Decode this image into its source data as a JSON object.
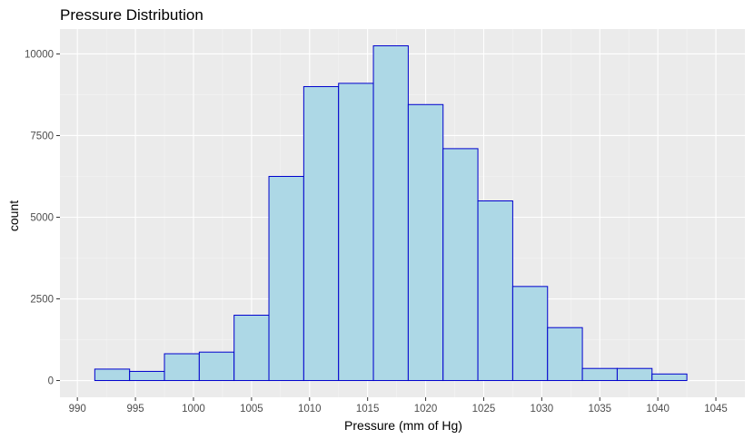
{
  "chart_data": {
    "type": "bar",
    "subtype": "histogram",
    "title": "Pressure Distribution",
    "xlabel": "Pressure (mm of Hg)",
    "ylabel": "count",
    "bin_width": 3,
    "bins": [
      {
        "x0": 991.5,
        "x1": 994.5,
        "count": 350
      },
      {
        "x0": 994.5,
        "x1": 997.5,
        "count": 280
      },
      {
        "x0": 997.5,
        "x1": 1000.5,
        "count": 820
      },
      {
        "x0": 1000.5,
        "x1": 1003.5,
        "count": 870
      },
      {
        "x0": 1003.5,
        "x1": 1006.5,
        "count": 2000
      },
      {
        "x0": 1006.5,
        "x1": 1009.5,
        "count": 6250
      },
      {
        "x0": 1009.5,
        "x1": 1012.5,
        "count": 9000
      },
      {
        "x0": 1012.5,
        "x1": 1015.5,
        "count": 9100
      },
      {
        "x0": 1015.5,
        "x1": 1018.5,
        "count": 10250
      },
      {
        "x0": 1018.5,
        "x1": 1021.5,
        "count": 8450
      },
      {
        "x0": 1021.5,
        "x1": 1024.5,
        "count": 7100
      },
      {
        "x0": 1024.5,
        "x1": 1027.5,
        "count": 5500
      },
      {
        "x0": 1027.5,
        "x1": 1030.5,
        "count": 2880
      },
      {
        "x0": 1030.5,
        "x1": 1033.5,
        "count": 1620
      },
      {
        "x0": 1033.5,
        "x1": 1036.5,
        "count": 370
      },
      {
        "x0": 1036.5,
        "x1": 1039.5,
        "count": 370
      },
      {
        "x0": 1039.5,
        "x1": 1042.5,
        "count": 200
      }
    ],
    "xlim": [
      988.5,
      1047.5
    ],
    "ylim": [
      -513,
      10763
    ],
    "x_ticks": [
      990,
      995,
      1000,
      1005,
      1010,
      1015,
      1020,
      1025,
      1030,
      1035,
      1040,
      1045
    ],
    "y_ticks": [
      0,
      2500,
      5000,
      7500,
      10000
    ],
    "grid": true,
    "colors": {
      "bar_fill": "#add8e6",
      "bar_stroke": "#0000cd",
      "panel_background": "#ebebeb",
      "grid_major": "#ffffff",
      "grid_minor": "#f5f5f5",
      "tick_text": "#4d4d4d"
    }
  }
}
